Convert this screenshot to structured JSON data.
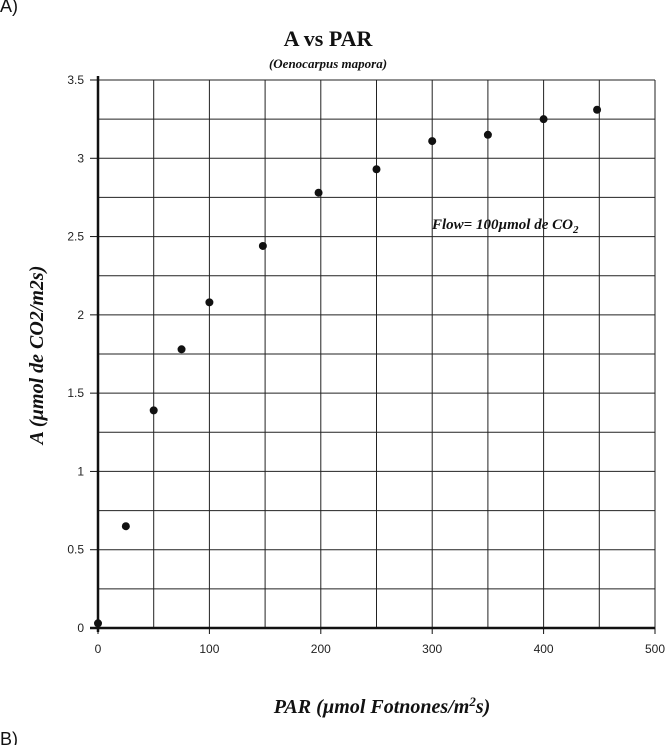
{
  "panel_label_top": "A)",
  "panel_label_bottom": "B)",
  "chart_data": {
    "type": "scatter",
    "title": "A vs PAR",
    "subtitle": "(Oenocarpus mapora)",
    "xlabel_main": "PAR (µmol Fotnones/m",
    "xlabel_sup": "2",
    "xlabel_end": "s)",
    "ylabel": "A (µmol de CO2/m2s)",
    "annotation_main": "Flow= 100µmol de CO",
    "annotation_sub": "2",
    "xlim": [
      0,
      500
    ],
    "ylim": [
      0,
      3.5
    ],
    "x_ticks": [
      0,
      100,
      200,
      300,
      400,
      500
    ],
    "y_ticks": [
      0,
      0.5,
      1,
      1.5,
      2,
      2.5,
      3,
      3.5
    ],
    "x_tick_labels": [
      "0",
      "100",
      "200",
      "300",
      "400",
      "500"
    ],
    "y_tick_labels": [
      "0",
      "0.5",
      "1",
      "1.5",
      "2",
      "2.5",
      "3",
      "3.5"
    ],
    "grid": true,
    "marker_color": "#111111",
    "points": [
      {
        "x": 0,
        "y": 0.03
      },
      {
        "x": 25,
        "y": 0.65
      },
      {
        "x": 50,
        "y": 1.39
      },
      {
        "x": 75,
        "y": 1.78
      },
      {
        "x": 100,
        "y": 2.08
      },
      {
        "x": 148,
        "y": 2.44
      },
      {
        "x": 198,
        "y": 2.78
      },
      {
        "x": 250,
        "y": 2.93
      },
      {
        "x": 300,
        "y": 3.11
      },
      {
        "x": 350,
        "y": 3.15
      },
      {
        "x": 400,
        "y": 3.25
      },
      {
        "x": 448,
        "y": 3.31
      }
    ]
  }
}
